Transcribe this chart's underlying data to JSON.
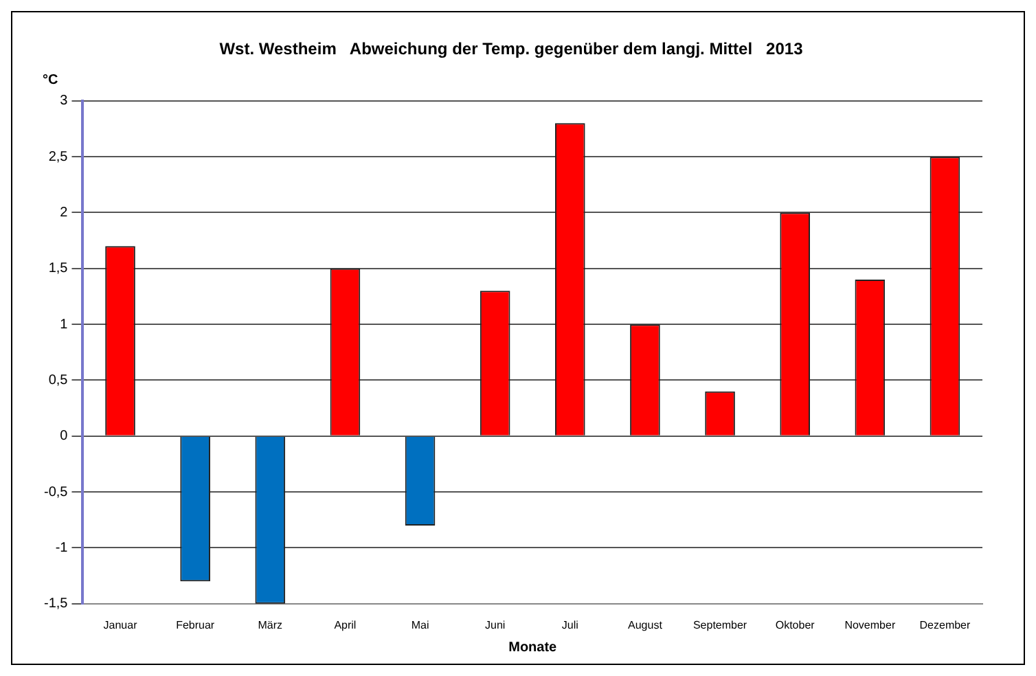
{
  "chart_data": {
    "type": "bar",
    "title": "Wst. Westheim   Abweichung der Temp. gegenüber dem langj. Mittel   2013",
    "xlabel": "Monate",
    "ylabel": "°C",
    "categories": [
      "Januar",
      "Februar",
      "März",
      "April",
      "Mai",
      "Juni",
      "Juli",
      "August",
      "September",
      "Oktober",
      "November",
      "Dezember"
    ],
    "values": [
      1.7,
      -1.3,
      -1.5,
      1.5,
      -0.8,
      1.3,
      2.8,
      1.0,
      0.4,
      2.0,
      1.4,
      2.5
    ],
    "colors": [
      "#ff0000",
      "#0070c0",
      "#0070c0",
      "#ff0000",
      "#0070c0",
      "#ff0000",
      "#ff0000",
      "#ff0000",
      "#ff0000",
      "#ff0000",
      "#ff0000",
      "#ff0000"
    ],
    "ylim": [
      -1.5,
      3
    ],
    "yticks": [
      {
        "value": -1.5,
        "label": "-1,5"
      },
      {
        "value": -1,
        "label": "-1"
      },
      {
        "value": -0.5,
        "label": "-0,5"
      },
      0,
      {
        "value": 0.5,
        "label": "0,5"
      },
      1,
      {
        "value": 1.5,
        "label": "1,5"
      },
      2,
      {
        "value": 2.5,
        "label": "2,5"
      },
      3
    ],
    "grid": "y",
    "legend": false
  }
}
